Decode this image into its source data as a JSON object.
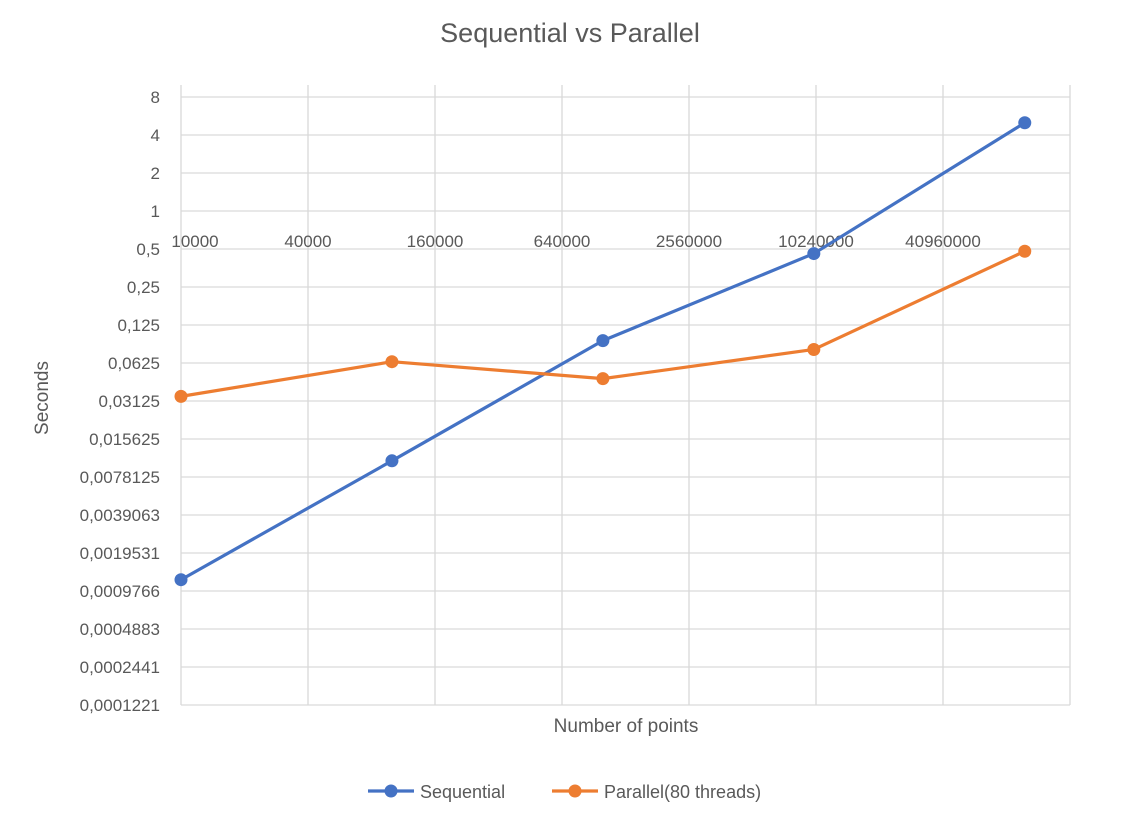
{
  "chart_data": {
    "type": "line",
    "title": "Sequential vs Parallel",
    "xlabel": "Number of points",
    "ylabel": "Seconds",
    "x_tick_labels": [
      "10000",
      "40000",
      "160000",
      "640000",
      "2560000",
      "10240000",
      "40960000"
    ],
    "y_tick_labels": [
      "8",
      "4",
      "2",
      "1",
      "0,5",
      "0,25",
      "0,125",
      "0,0625",
      "0,03125",
      "0,015625",
      "0,0078125",
      "0,0039063",
      "0,0019531",
      "0,0009766",
      "0,0004883",
      "0,0002441",
      "0,0001221"
    ],
    "x_scale": "log2",
    "y_scale": "log2",
    "xlim": [
      10000,
      163840000
    ],
    "ylim": [
      0.0001221,
      8
    ],
    "grid": true,
    "legend_position": "bottom",
    "x": [
      10000,
      100000,
      1000000,
      10000000,
      100000000
    ],
    "series": [
      {
        "name": "Sequential",
        "color": "#4472C4",
        "values": [
          0.0012,
          0.0105,
          0.094,
          0.46,
          5.0
        ]
      },
      {
        "name": "Parallel(80 threads)",
        "color": "#ED7D31",
        "values": [
          0.034,
          0.064,
          0.047,
          0.08,
          0.48
        ]
      }
    ]
  }
}
